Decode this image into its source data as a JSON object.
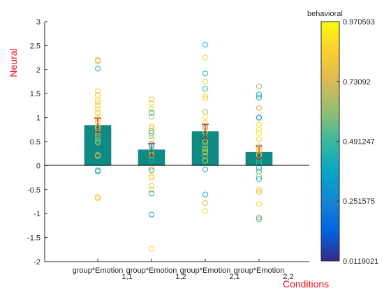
{
  "chart_data": {
    "type": "bar",
    "categories": [
      "group*Emotion",
      "group*Emotion",
      "group*Emotion",
      "group*Emotion"
    ],
    "category_subscripts": [
      "1,1",
      "1,2",
      "2,1",
      "2,2"
    ],
    "values": [
      0.84,
      0.33,
      0.71,
      0.28
    ],
    "errors": [
      0.15,
      0.13,
      0.15,
      0.13
    ],
    "xlabel": "Conditions",
    "ylabel": "Neural",
    "ylim": [
      -2,
      3
    ],
    "yticks": [
      -2,
      -1.5,
      -1,
      -0.5,
      0,
      0.5,
      1,
      1.5,
      2,
      2.5,
      3
    ],
    "bar_color": "#0e8b84",
    "error_color": "#d42020",
    "axis_label_color": "#e8121b",
    "grid": false,
    "points": [
      [
        [
          2.2,
          0.78
        ],
        [
          2.18,
          0.75
        ],
        [
          2.02,
          0.46
        ],
        [
          1.55,
          0.88
        ],
        [
          1.47,
          0.84
        ],
        [
          1.37,
          0.9
        ],
        [
          1.32,
          0.9
        ],
        [
          1.25,
          0.8
        ],
        [
          1.17,
          0.92
        ],
        [
          1.1,
          0.85
        ],
        [
          1.02,
          0.94
        ],
        [
          0.97,
          0.8
        ],
        [
          0.9,
          0.88
        ],
        [
          0.82,
          0.72
        ],
        [
          0.78,
          0.9
        ],
        [
          0.68,
          0.7
        ],
        [
          0.62,
          0.62
        ],
        [
          0.55,
          0.58
        ],
        [
          0.5,
          0.6
        ],
        [
          0.48,
          0.66
        ],
        [
          0.22,
          0.72
        ],
        [
          0.2,
          0.75
        ],
        [
          -0.1,
          0.45
        ],
        [
          -0.12,
          0.4
        ],
        [
          -0.65,
          0.84
        ],
        [
          -0.68,
          0.88
        ]
      ],
      [
        [
          1.38,
          0.83
        ],
        [
          1.3,
          0.86
        ],
        [
          1.18,
          0.9
        ],
        [
          1.1,
          0.42
        ],
        [
          1.02,
          0.68
        ],
        [
          0.82,
          0.87
        ],
        [
          0.78,
          0.84
        ],
        [
          0.72,
          0.6
        ],
        [
          0.68,
          0.55
        ],
        [
          0.62,
          0.66
        ],
        [
          0.55,
          0.82
        ],
        [
          0.45,
          0.45
        ],
        [
          0.4,
          0.42
        ],
        [
          0.32,
          0.48
        ],
        [
          0.22,
          0.95
        ],
        [
          0.12,
          0.48
        ],
        [
          -0.05,
          0.86
        ],
        [
          -0.1,
          0.4
        ],
        [
          -0.22,
          0.92
        ],
        [
          -0.25,
          0.88
        ],
        [
          -0.42,
          0.78
        ],
        [
          -0.5,
          0.9
        ],
        [
          -0.58,
          0.42
        ],
        [
          -1.02,
          0.38
        ],
        [
          -1.73,
          0.88
        ]
      ],
      [
        [
          2.52,
          0.44
        ],
        [
          2.25,
          0.86
        ],
        [
          1.92,
          0.45
        ],
        [
          1.75,
          0.84
        ],
        [
          1.6,
          0.48
        ],
        [
          1.45,
          0.92
        ],
        [
          1.4,
          0.88
        ],
        [
          1.12,
          0.62
        ],
        [
          1.02,
          0.95
        ],
        [
          0.9,
          0.86
        ],
        [
          0.82,
          0.72
        ],
        [
          0.78,
          0.58
        ],
        [
          0.7,
          0.9
        ],
        [
          0.6,
          0.46
        ],
        [
          0.5,
          0.9
        ],
        [
          0.42,
          0.6
        ],
        [
          0.35,
          0.84
        ],
        [
          0.28,
          0.92
        ],
        [
          0.2,
          0.66
        ],
        [
          0.1,
          0.9
        ],
        [
          -0.08,
          0.42
        ],
        [
          -0.6,
          0.4
        ],
        [
          -0.78,
          0.78
        ],
        [
          -0.95,
          0.92
        ]
      ],
      [
        [
          1.65,
          0.64
        ],
        [
          1.48,
          0.42
        ],
        [
          1.42,
          0.45
        ],
        [
          1.2,
          0.74
        ],
        [
          1.0,
          0.12
        ],
        [
          1.0,
          0.35
        ],
        [
          0.85,
          0.93
        ],
        [
          0.75,
          0.9
        ],
        [
          0.68,
          0.95
        ],
        [
          0.55,
          0.9
        ],
        [
          0.4,
          0.62
        ],
        [
          0.35,
          0.92
        ],
        [
          0.3,
          0.86
        ],
        [
          0.22,
          0.88
        ],
        [
          0.12,
          0.46
        ],
        [
          0.05,
          0.5
        ],
        [
          -0.05,
          0.44
        ],
        [
          -0.12,
          0.48
        ],
        [
          -0.22,
          0.68
        ],
        [
          -0.28,
          0.4
        ],
        [
          -0.5,
          0.83
        ],
        [
          -0.55,
          0.8
        ],
        [
          -0.8,
          0.92
        ],
        [
          -1.08,
          0.6
        ],
        [
          -1.12,
          0.56
        ]
      ]
    ]
  },
  "colorbar": {
    "title": "behavioral",
    "min": 0.0119021,
    "max": 0.970593,
    "tick_values": [
      0.0119021,
      0.251575,
      0.491247,
      0.73092,
      0.970593
    ],
    "tick_labels": [
      "0.0119021",
      "0.251575",
      "0.491247",
      "0.73092",
      "0.970593"
    ]
  }
}
